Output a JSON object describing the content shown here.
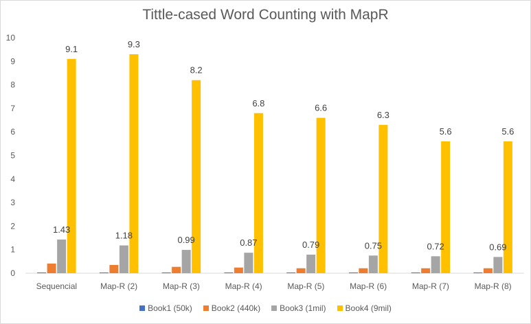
{
  "chart_data": {
    "type": "bar",
    "title": "Tittle-cased Word Counting with MapR",
    "categories": [
      "Sequencial",
      "Map-R (2)",
      "Map-R (3)",
      "Map-R (4)",
      "Map-R (5)",
      "Map-R (6)",
      "Map-R (7)",
      "Map-R (8)"
    ],
    "series": [
      {
        "name": "Book1 (50k)",
        "color": "#4472c4",
        "values": [
          0.03,
          0.03,
          0.03,
          0.03,
          0.03,
          0.03,
          0.03,
          0.03
        ],
        "labels": null
      },
      {
        "name": "Book2 (440k)",
        "color": "#ed7d31",
        "values": [
          0.41,
          0.35,
          0.27,
          0.24,
          0.21,
          0.21,
          0.21,
          0.21
        ],
        "labels": null
      },
      {
        "name": "Book3 (1mil)",
        "color": "#a5a5a5",
        "values": [
          1.43,
          1.18,
          0.99,
          0.87,
          0.79,
          0.75,
          0.72,
          0.69
        ],
        "labels": [
          "1.43",
          "1.18",
          "0.99",
          "0.87",
          "0.79",
          "0.75",
          "0.72",
          "0.69"
        ]
      },
      {
        "name": "Book4 (9mil)",
        "color": "#ffc000",
        "values": [
          9.1,
          9.3,
          8.2,
          6.8,
          6.6,
          6.3,
          5.6,
          5.6
        ],
        "labels": [
          "9.1",
          "9.3",
          "8.2",
          "6.8",
          "6.6",
          "6.3",
          "5.6",
          "5.6"
        ]
      }
    ],
    "yticks": [
      "0",
      "1",
      "2",
      "3",
      "4",
      "5",
      "6",
      "7",
      "8",
      "9",
      "10"
    ],
    "ylim": [
      0,
      10
    ],
    "xlabel": "",
    "ylabel": "",
    "grid": false,
    "legend": "bottom"
  }
}
